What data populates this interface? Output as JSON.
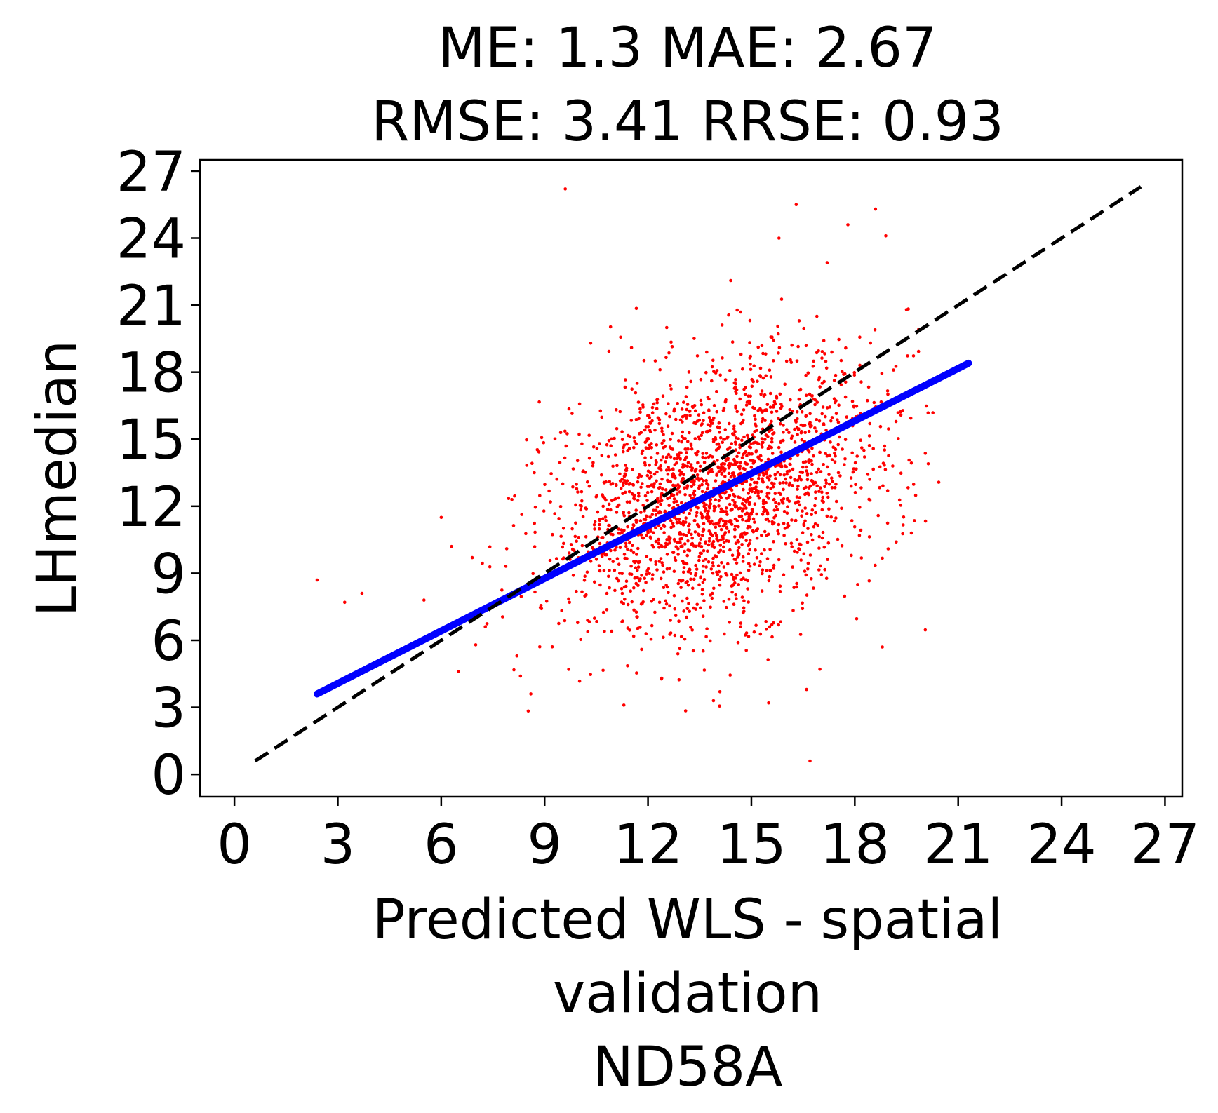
{
  "chart_data": {
    "type": "scatter",
    "title_lines": [
      "ME: 1.3 MAE: 2.67",
      "RMSE: 3.41 RRSE: 0.93"
    ],
    "xlabel_lines": [
      "Predicted WLS - spatial",
      "validation",
      "ND58A"
    ],
    "ylabel": "LHmedian",
    "xlim": [
      -1,
      27.5
    ],
    "ylim": [
      -1,
      27.5
    ],
    "xticks": [
      "0",
      "3",
      "6",
      "9",
      "12",
      "15",
      "18",
      "21",
      "24",
      "27"
    ],
    "yticks": [
      "0",
      "3",
      "6",
      "9",
      "12",
      "15",
      "18",
      "21",
      "24",
      "27"
    ],
    "grid": false,
    "colors": {
      "points": "#ff0000",
      "fit_line": "#0000ff",
      "identity_line": "#000000"
    },
    "series": [
      {
        "kind": "points",
        "x": [
          9.6,
          16.3,
          18.6,
          18.9,
          17.8,
          15.8,
          14.4,
          17.2,
          19.5,
          2.4,
          3.2,
          3.7,
          6.0,
          6.3,
          6.9,
          7.0,
          8.3,
          8.6,
          8.7,
          16.7,
          16.6,
          11.3,
          13.9,
          15.5,
          12.4,
          9.7,
          18.8,
          19.2,
          19.1,
          17.9,
          5.5,
          6.5,
          7.9,
          11.8,
          14.7,
          16.9
        ],
        "y": [
          26.2,
          25.5,
          25.3,
          24.1,
          24.6,
          24.0,
          22.1,
          22.9,
          20.8,
          8.7,
          7.7,
          8.1,
          11.5,
          10.2,
          9.7,
          5.8,
          4.4,
          3.6,
          13.5,
          0.6,
          3.8,
          3.1,
          3.3,
          3.2,
          4.3,
          4.7,
          5.7,
          10.4,
          13.8,
          9.8,
          7.8,
          4.6,
          10.1,
          15.3,
          18.8,
          20.5
        ]
      },
      {
        "kind": "points",
        "name": "dense",
        "cluster": {
          "mean_x": 13.9,
          "mean_y": 12.6,
          "sd_x": 2.4,
          "sd_y": 3.0,
          "corr": 0.32,
          "count": 2200
        }
      },
      {
        "kind": "line",
        "style": "solid",
        "color": "#0000ff",
        "x": [
          2.4,
          21.3
        ],
        "y": [
          3.6,
          18.4
        ]
      },
      {
        "kind": "line",
        "style": "dashed",
        "color": "#000000",
        "x": [
          0.6,
          26.3
        ],
        "y": [
          0.6,
          26.3
        ]
      }
    ]
  }
}
